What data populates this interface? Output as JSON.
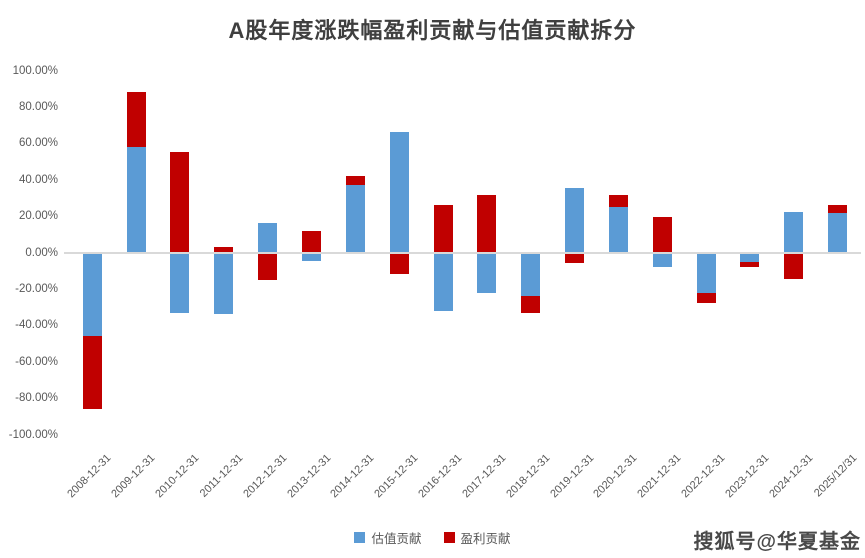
{
  "title": "A股年度涨跌幅盈利贡献与估值贡献拆分",
  "watermark": "搜狐号@华夏基金",
  "colors": {
    "valuation_blue": "#5B9BD5",
    "earnings_red": "#C00000",
    "axis_text": "#595959",
    "zero_line": "#d9d9d9"
  },
  "legend": [
    {
      "label": "估值贡献",
      "color": "#5B9BD5"
    },
    {
      "label": "盈利贡献",
      "color": "#C00000"
    }
  ],
  "chart_data": {
    "type": "bar",
    "stacked": true,
    "title": "A股年度涨跌幅盈利贡献与估值贡献拆分",
    "xlabel": "",
    "ylabel": "",
    "ylim": [
      -100,
      100
    ],
    "grid": "zero-line-only",
    "legend_position": "bottom",
    "categories": [
      "2008-12-31",
      "2009-12-31",
      "2010-12-31",
      "2011-12-31",
      "2012-12-31",
      "2013-12-31",
      "2014-12-31",
      "2015-12-31",
      "2016-12-31",
      "2017-12-31",
      "2018-12-31",
      "2019-12-31",
      "2020-12-31",
      "2021-12-31",
      "2022-12-31",
      "2023-12-31",
      "2024-12-31",
      "2025/12/31"
    ],
    "series": [
      {
        "name": "估值贡献",
        "color": "#5B9BD5",
        "values": [
          -46,
          58,
          -33,
          -34,
          16,
          -4.5,
          37,
          66,
          -32,
          -22,
          -24,
          35.5,
          25,
          -8,
          -22.5,
          -5,
          22,
          21.5
        ]
      },
      {
        "name": "盈利贡献",
        "color": "#C00000",
        "values": [
          -40,
          30,
          55,
          3,
          -15,
          12,
          5,
          -12,
          26,
          31.5,
          -9.5,
          -5.5,
          6.5,
          19.5,
          -5,
          -3,
          -14.5,
          4.5
        ]
      }
    ],
    "yticks": [
      {
        "label": "100.00%",
        "value": 100
      },
      {
        "label": "80.00%",
        "value": 80
      },
      {
        "label": "60.00%",
        "value": 60
      },
      {
        "label": "40.00%",
        "value": 40
      },
      {
        "label": "20.00%",
        "value": 20
      },
      {
        "label": "0.00%",
        "value": 0
      },
      {
        "label": "-20.00%",
        "value": -20
      },
      {
        "label": "-40.00%",
        "value": -40
      },
      {
        "label": "-60.00%",
        "value": -60
      },
      {
        "label": "-80.00%",
        "value": -80
      },
      {
        "label": "-100.00%",
        "value": -100
      }
    ]
  }
}
